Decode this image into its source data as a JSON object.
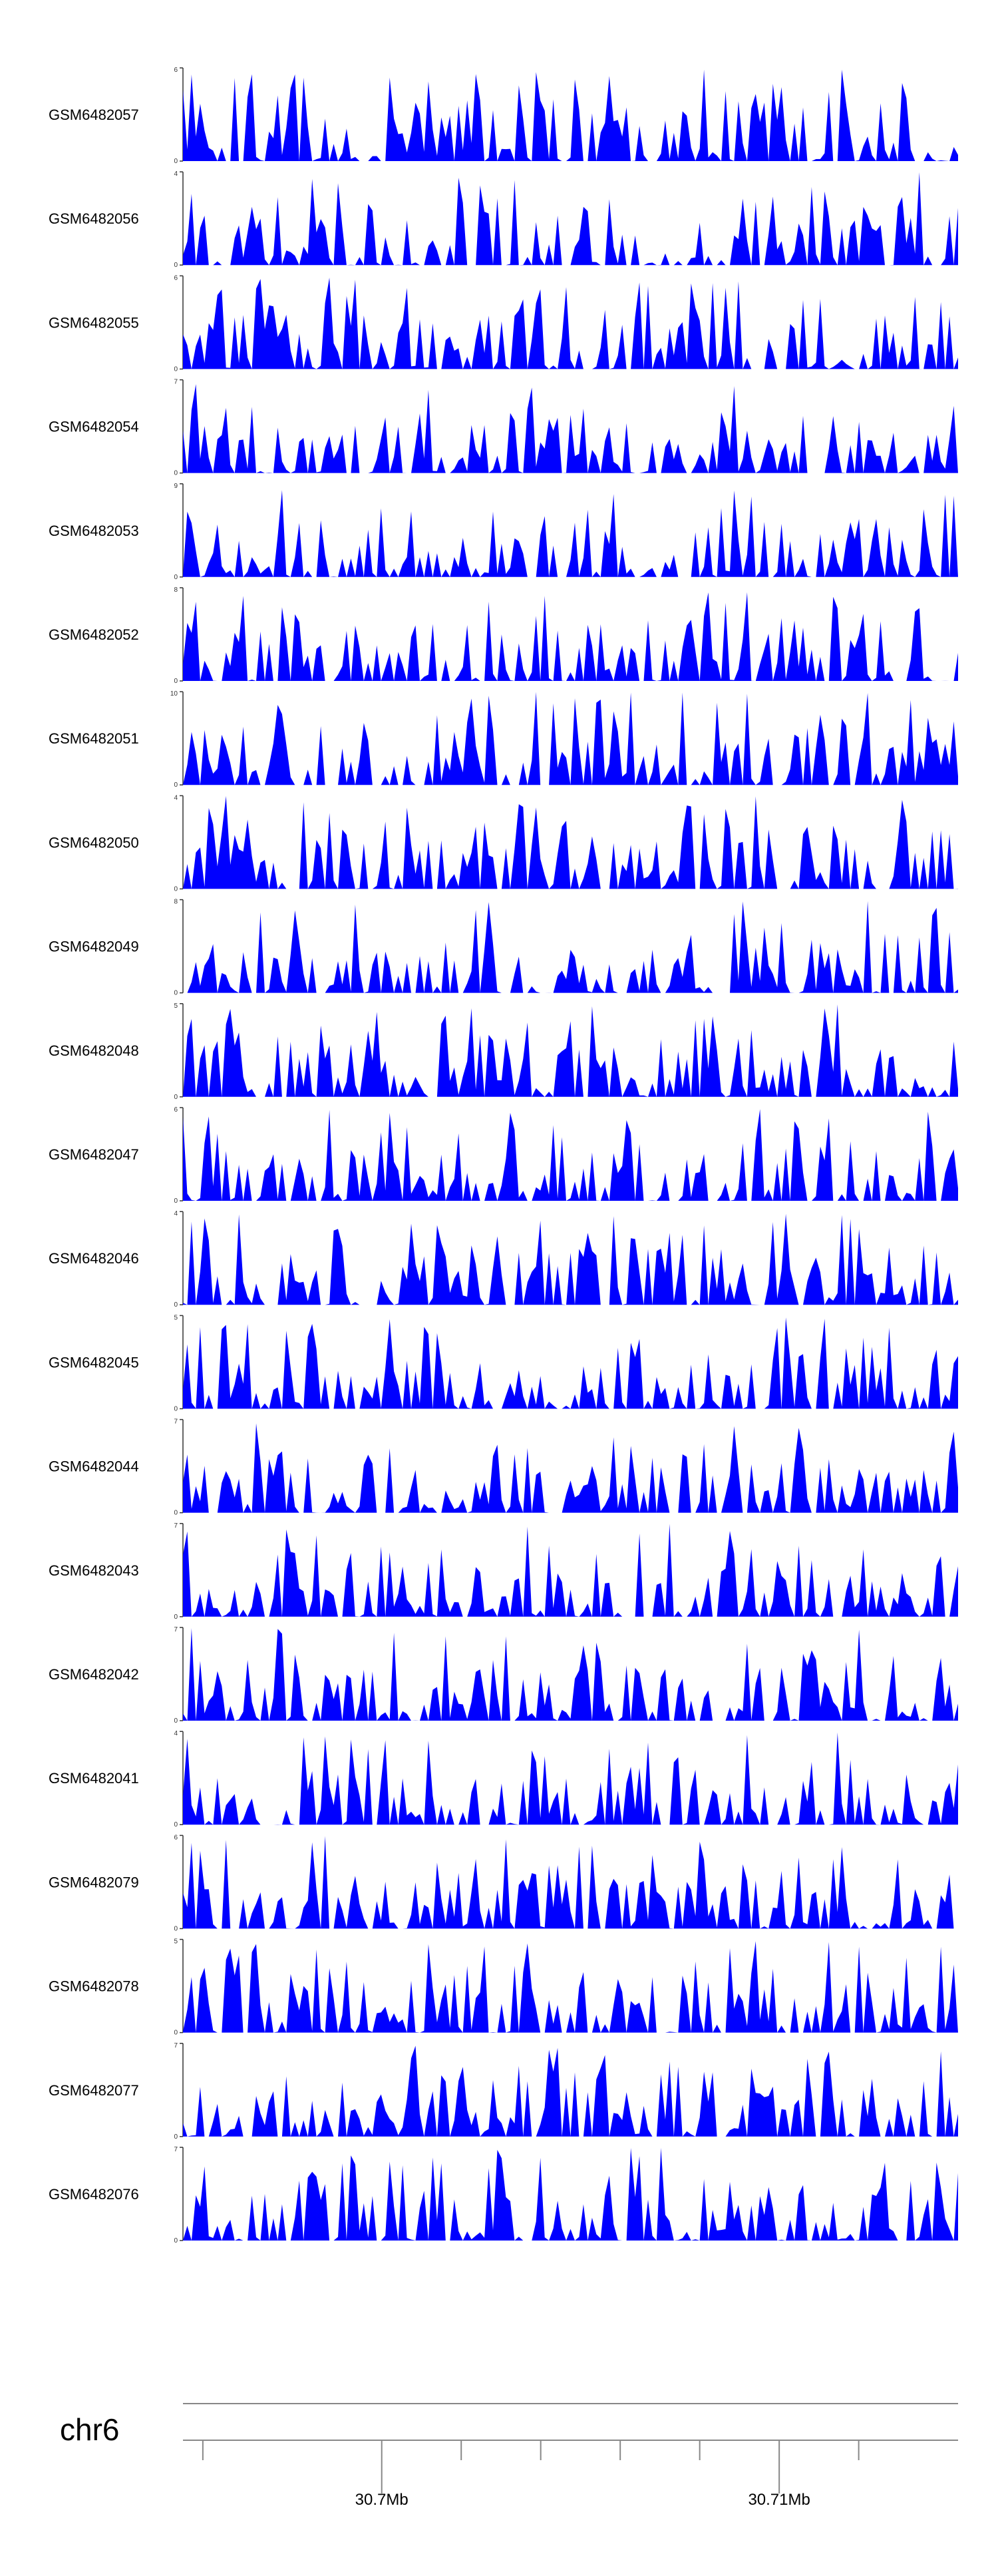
{
  "chart_data": {
    "type": "area",
    "fill_color": "#0000ff",
    "axis_color": "#333333",
    "chromosome_label": "chr6",
    "x_range_bp": [
      30695000,
      30714500
    ],
    "x_ticks": [
      {
        "pos": 30700000,
        "label": "30.7Mb"
      },
      {
        "pos": 30710000,
        "label": "30.71Mb"
      }
    ],
    "x_minor_ticks": [
      30695500,
      30702000,
      30704000,
      30706000,
      30708000,
      30712000
    ],
    "tracks": [
      {
        "name": "GSM6482057",
        "ymax": 6
      },
      {
        "name": "GSM6482056",
        "ymax": 4
      },
      {
        "name": "GSM6482055",
        "ymax": 6
      },
      {
        "name": "GSM6482054",
        "ymax": 7
      },
      {
        "name": "GSM6482053",
        "ymax": 9
      },
      {
        "name": "GSM6482052",
        "ymax": 8
      },
      {
        "name": "GSM6482051",
        "ymax": 10
      },
      {
        "name": "GSM6482050",
        "ymax": 4
      },
      {
        "name": "GSM6482049",
        "ymax": 8
      },
      {
        "name": "GSM6482048",
        "ymax": 5
      },
      {
        "name": "GSM6482047",
        "ymax": 6
      },
      {
        "name": "GSM6482046",
        "ymax": 4
      },
      {
        "name": "GSM6482045",
        "ymax": 5
      },
      {
        "name": "GSM6482044",
        "ymax": 7
      },
      {
        "name": "GSM6482043",
        "ymax": 7
      },
      {
        "name": "GSM6482042",
        "ymax": 7
      },
      {
        "name": "GSM6482041",
        "ymax": 4
      },
      {
        "name": "GSM6482079",
        "ymax": 6
      },
      {
        "name": "GSM6482078",
        "ymax": 5
      },
      {
        "name": "GSM6482077",
        "ymax": 7
      },
      {
        "name": "GSM6482076",
        "ymax": 7
      }
    ]
  }
}
